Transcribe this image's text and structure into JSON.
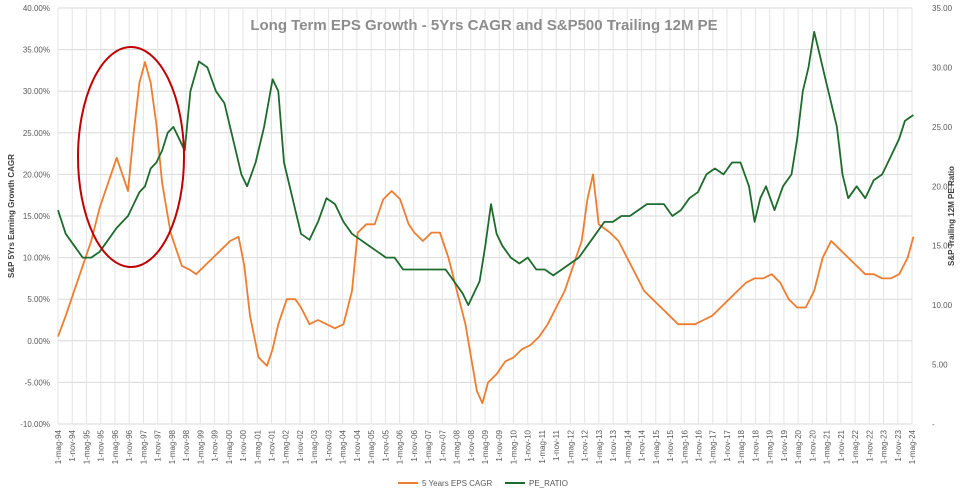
{
  "chart_data": {
    "type": "line",
    "title": "Long Term EPS Growth - 5Yrs CAGR and S&P500 Trailing 12M PE",
    "ylabel_left": "S&P 5Yrs Earning Growth CAGR",
    "ylabel_right": "S&P Trailing 12M PE Ratio",
    "ylim_left": [
      -0.1,
      0.4
    ],
    "ylim_right": [
      0,
      35
    ],
    "left_ticks": [
      "-10.00%",
      "-5.00%",
      "0.00%",
      "5.00%",
      "10.00%",
      "15.00%",
      "20.00%",
      "25.00%",
      "30.00%",
      "35.00%",
      "40.00%"
    ],
    "right_ticks": [
      "-",
      "5.00",
      "10.00",
      "15.00",
      "20.00",
      "25.00",
      "30.00",
      "35.00"
    ],
    "x_ticks": [
      "1-mag-94",
      "1-nov-94",
      "1-mag-95",
      "1-nov-95",
      "1-mag-96",
      "1-nov-96",
      "1-mag-97",
      "1-nov-97",
      "1-mag-98",
      "1-nov-98",
      "1-mag-99",
      "1-nov-99",
      "1-mag-00",
      "1-nov-00",
      "1-mag-01",
      "1-nov-01",
      "1-mag-02",
      "1-nov-02",
      "1-mag-03",
      "1-nov-03",
      "1-mag-04",
      "1-nov-04",
      "1-mag-05",
      "1-nov-05",
      "1-mag-06",
      "1-nov-06",
      "1-mag-07",
      "1-nov-07",
      "1-mag-08",
      "1-nov-08",
      "1-mag-09",
      "1-nov-09",
      "1-mag-10",
      "1-nov-10",
      "1-mag-11",
      "1-nov-11",
      "1-mag-12",
      "1-nov-12",
      "1-mag-13",
      "1-nov-13",
      "1-mag-14",
      "1-nov-14",
      "1-mag-15",
      "1-nov-15",
      "1-mag-16",
      "1-nov-16",
      "1-mag-17",
      "1-nov-17",
      "1-mag-18",
      "1-nov-18",
      "1-mag-19",
      "1-nov-19",
      "1-mag-20",
      "1-nov-20",
      "1-mag-21",
      "1-nov-21",
      "1-mag-22",
      "1-nov-22",
      "1-mag-23",
      "1-nov-23",
      "1-mag-24"
    ],
    "grid": true,
    "legend_position": "bottom",
    "series": [
      {
        "name": "5 Years EPS CAGR",
        "axis": "left",
        "color": "#ed7d31",
        "x": [
          1994.33,
          1994.6,
          1994.9,
          1995.2,
          1995.5,
          1995.8,
          1996.1,
          1996.4,
          1996.6,
          1996.8,
          1997.0,
          1997.2,
          1997.4,
          1997.6,
          1997.8,
          1998.0,
          1998.1,
          1998.3,
          1998.5,
          1998.7,
          1999.0,
          1999.2,
          1999.5,
          1999.8,
          2000.1,
          2000.4,
          2000.7,
          2000.9,
          2001.1,
          2001.4,
          2001.7,
          2001.9,
          2002.1,
          2002.4,
          2002.7,
          2002.9,
          2003.2,
          2003.5,
          2003.8,
          2004.1,
          2004.4,
          2004.7,
          2004.9,
          2005.2,
          2005.5,
          2005.8,
          2006.1,
          2006.4,
          2006.7,
          2006.9,
          2007.2,
          2007.5,
          2007.8,
          2008.1,
          2008.4,
          2008.7,
          2008.9,
          2009.1,
          2009.3,
          2009.5,
          2009.8,
          2010.1,
          2010.4,
          2010.7,
          2011.0,
          2011.3,
          2011.6,
          2011.9,
          2012.2,
          2012.5,
          2012.8,
          2013.0,
          2013.2,
          2013.4,
          2013.6,
          2013.8,
          2014.1,
          2014.4,
          2014.7,
          2015.0,
          2015.3,
          2015.6,
          2015.9,
          2016.2,
          2016.5,
          2016.8,
          2017.1,
          2017.4,
          2017.7,
          2018.0,
          2018.3,
          2018.6,
          2018.9,
          2019.2,
          2019.5,
          2019.8,
          2020.1,
          2020.4,
          2020.7,
          2021.0,
          2021.3,
          2021.6,
          2021.9,
          2022.2,
          2022.5,
          2022.8,
          2023.1,
          2023.4,
          2023.7,
          2024.0,
          2024.3,
          2024.5
        ],
        "values": [
          0.005,
          0.03,
          0.06,
          0.09,
          0.12,
          0.16,
          0.19,
          0.22,
          0.2,
          0.18,
          0.25,
          0.31,
          0.335,
          0.31,
          0.26,
          0.19,
          0.17,
          0.13,
          0.11,
          0.09,
          0.085,
          0.08,
          0.09,
          0.1,
          0.11,
          0.12,
          0.125,
          0.09,
          0.03,
          -0.02,
          -0.03,
          -0.01,
          0.02,
          0.05,
          0.05,
          0.04,
          0.02,
          0.025,
          0.02,
          0.015,
          0.02,
          0.06,
          0.13,
          0.14,
          0.14,
          0.17,
          0.18,
          0.17,
          0.14,
          0.13,
          0.12,
          0.13,
          0.13,
          0.1,
          0.06,
          0.02,
          -0.02,
          -0.06,
          -0.075,
          -0.05,
          -0.04,
          -0.025,
          -0.02,
          -0.01,
          -0.005,
          0.005,
          0.02,
          0.04,
          0.06,
          0.09,
          0.12,
          0.17,
          0.2,
          0.14,
          0.135,
          0.13,
          0.12,
          0.1,
          0.08,
          0.06,
          0.05,
          0.04,
          0.03,
          0.02,
          0.02,
          0.02,
          0.025,
          0.03,
          0.04,
          0.05,
          0.06,
          0.07,
          0.075,
          0.075,
          0.08,
          0.07,
          0.05,
          0.04,
          0.04,
          0.06,
          0.1,
          0.12,
          0.11,
          0.1,
          0.09,
          0.08,
          0.08,
          0.075,
          0.075,
          0.08,
          0.1,
          0.125
        ]
      },
      {
        "name": "PE_RATIO",
        "axis": "right",
        "color": "#1e6b2e",
        "x": [
          1994.33,
          1994.6,
          1994.9,
          1995.2,
          1995.5,
          1995.8,
          1996.1,
          1996.4,
          1996.6,
          1996.8,
          1997.0,
          1997.2,
          1997.4,
          1997.6,
          1997.8,
          1998.0,
          1998.2,
          1998.4,
          1998.6,
          1998.8,
          1999.0,
          1999.3,
          1999.6,
          1999.9,
          2000.2,
          2000.5,
          2000.8,
          2001.0,
          2001.3,
          2001.6,
          2001.9,
          2002.1,
          2002.3,
          2002.6,
          2002.9,
          2003.2,
          2003.5,
          2003.8,
          2004.1,
          2004.4,
          2004.7,
          2005.0,
          2005.3,
          2005.6,
          2005.9,
          2006.2,
          2006.5,
          2006.8,
          2007.1,
          2007.4,
          2007.7,
          2008.0,
          2008.3,
          2008.6,
          2008.8,
          2009.0,
          2009.2,
          2009.4,
          2009.6,
          2009.8,
          2010.0,
          2010.3,
          2010.6,
          2010.9,
          2011.2,
          2011.5,
          2011.8,
          2012.1,
          2012.4,
          2012.7,
          2013.0,
          2013.3,
          2013.6,
          2013.9,
          2014.2,
          2014.5,
          2014.8,
          2015.1,
          2015.4,
          2015.7,
          2016.0,
          2016.3,
          2016.6,
          2016.9,
          2017.2,
          2017.5,
          2017.8,
          2018.1,
          2018.4,
          2018.7,
          2018.9,
          2019.1,
          2019.3,
          2019.6,
          2019.9,
          2020.2,
          2020.4,
          2020.6,
          2020.8,
          2021.0,
          2021.2,
          2021.4,
          2021.6,
          2021.8,
          2022.0,
          2022.2,
          2022.5,
          2022.8,
          2023.1,
          2023.4,
          2023.7,
          2024.0,
          2024.2,
          2024.5
        ],
        "values": [
          18,
          16,
          15,
          14,
          14,
          14.5,
          15.5,
          16.5,
          17,
          17.5,
          18.5,
          19.5,
          20,
          21.5,
          22,
          23,
          24.5,
          25,
          24,
          23,
          28,
          30.5,
          30,
          28,
          27,
          24,
          21,
          20,
          22,
          25,
          29,
          28,
          22,
          19,
          16,
          15.5,
          17,
          19,
          18.5,
          17,
          16,
          15.5,
          15,
          14.5,
          14,
          14,
          13,
          13,
          13,
          13,
          13,
          13,
          12,
          11,
          10,
          11,
          12,
          15,
          18.5,
          16,
          15,
          14,
          13.5,
          14,
          13,
          13,
          12.5,
          13,
          13.5,
          14,
          15,
          16,
          17,
          17,
          17.5,
          17.5,
          18,
          18.5,
          18.5,
          18.5,
          17.5,
          18,
          19,
          19.5,
          21,
          21.5,
          21,
          22,
          22,
          20,
          17,
          19,
          20,
          18,
          20,
          21,
          24,
          28,
          30,
          33,
          31,
          29,
          27,
          25,
          21,
          19,
          20,
          19,
          20.5,
          21,
          22.5,
          24,
          25.5,
          26
        ]
      }
    ]
  },
  "legend": {
    "items": [
      "5 Years EPS CAGR",
      "PE_RATIO"
    ]
  }
}
